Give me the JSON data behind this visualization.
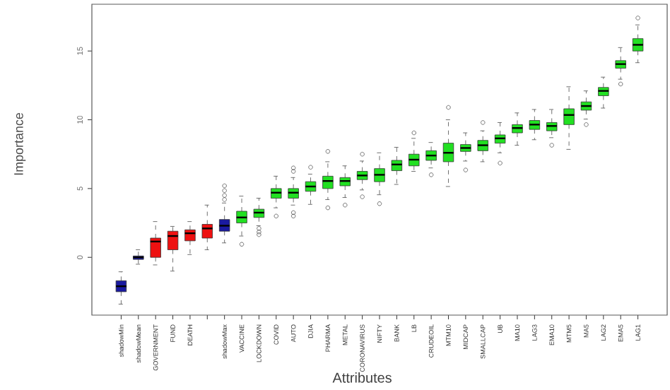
{
  "chart_data": {
    "type": "box",
    "xlabel": "Attributes",
    "ylabel": "Importance",
    "categories": [
      "shadowMin",
      "shadowMean",
      "GOVERNMENT",
      "FUND",
      "DEATH",
      null,
      "shadowMax",
      "VACCINE",
      "LOCKDOWN",
      "COVID",
      "AUTO",
      "DJIA",
      "PHARMA",
      "METAL",
      "CORONAVIRUS",
      "NIFTY",
      "BANK",
      "LB",
      "CRUDEOIL",
      "MTM10",
      "MIDCAP",
      "SMALLCAP",
      "UB",
      "MA10",
      "LAG3",
      "EMA10",
      "MTM5",
      "MA5",
      "LAG2",
      "EMA5",
      "LAG1"
    ],
    "colors": [
      "#1a1aa0",
      "#1a1aa0",
      "#ee1111",
      "#ee1111",
      "#ee1111",
      "#ee1111",
      "#1a1aa0",
      "#22e022",
      "#22e022",
      "#22e022",
      "#22e022",
      "#22e022",
      "#22e022",
      "#22e022",
      "#22e022",
      "#22e022",
      "#22e022",
      "#22e022",
      "#22e022",
      "#22e022",
      "#22e022",
      "#22e022",
      "#22e022",
      "#22e022",
      "#22e022",
      "#22e022",
      "#22e022",
      "#22e022",
      "#22e022",
      "#22e022",
      "#22e022"
    ],
    "boxes": [
      {
        "low": -3.4,
        "q1": -2.5,
        "median": -2.1,
        "q3": -1.7,
        "high": -1.05
      },
      {
        "low": -0.5,
        "q1": -0.15,
        "median": 0,
        "q3": 0.1,
        "high": 0.55
      },
      {
        "low": -0.55,
        "q1": 0,
        "median": 1.15,
        "q3": 1.4,
        "high": 2.6
      },
      {
        "low": -1.0,
        "q1": 0.55,
        "median": 1.55,
        "q3": 1.9,
        "high": 2.25
      },
      {
        "low": 0.2,
        "q1": 1.2,
        "median": 1.75,
        "q3": 2.0,
        "high": 2.6
      },
      {
        "low": 0.55,
        "q1": 1.4,
        "median": 2.1,
        "q3": 2.4,
        "high": 3.8
      },
      {
        "low": 1.05,
        "q1": 1.9,
        "median": 2.3,
        "q3": 2.75,
        "high": 3.95,
        "outliers": [
          4.2,
          4.5,
          4.85,
          5.2
        ]
      },
      {
        "low": 1.55,
        "q1": 2.5,
        "median": 2.9,
        "q3": 3.35,
        "high": 4.45,
        "outliers": [
          0.95
        ]
      },
      {
        "low": 2.3,
        "q1": 2.9,
        "median": 3.25,
        "q3": 3.5,
        "high": 4.3,
        "outliers": [
          2.1,
          1.85,
          1.65
        ]
      },
      {
        "low": 3.6,
        "q1": 4.3,
        "median": 4.7,
        "q3": 5.0,
        "high": 5.9,
        "outliers": [
          3.0
        ]
      },
      {
        "low": 3.8,
        "q1": 4.3,
        "median": 4.7,
        "q3": 5.0,
        "high": 5.8,
        "outliers": [
          6.25,
          6.5,
          3.25,
          3.0
        ]
      },
      {
        "low": 3.85,
        "q1": 4.8,
        "median": 5.15,
        "q3": 5.5,
        "high": 6.05,
        "outliers": [
          6.55
        ]
      },
      {
        "low": 4.2,
        "q1": 5.0,
        "median": 5.55,
        "q3": 5.9,
        "high": 6.95,
        "outliers": [
          7.7,
          3.6
        ]
      },
      {
        "low": 4.35,
        "q1": 5.2,
        "median": 5.55,
        "q3": 5.8,
        "high": 6.65,
        "outliers": [
          3.8
        ]
      },
      {
        "low": 4.9,
        "q1": 5.65,
        "median": 5.95,
        "q3": 6.25,
        "high": 7.0,
        "outliers": [
          7.5,
          4.4
        ]
      },
      {
        "low": 4.55,
        "q1": 5.5,
        "median": 6.0,
        "q3": 6.45,
        "high": 7.6,
        "outliers": [
          3.9
        ]
      },
      {
        "low": 5.3,
        "q1": 6.3,
        "median": 6.75,
        "q3": 7.05,
        "high": 8.0
      },
      {
        "low": 6.25,
        "q1": 6.65,
        "median": 7.1,
        "q3": 7.5,
        "high": 8.65,
        "outliers": [
          9.05
        ]
      },
      {
        "low": 6.5,
        "q1": 7.05,
        "median": 7.4,
        "q3": 7.75,
        "high": 8.35,
        "outliers": [
          6.0
        ]
      },
      {
        "low": 5.15,
        "q1": 6.95,
        "median": 7.6,
        "q3": 8.3,
        "high": 10.0,
        "outliers": [
          10.9
        ]
      },
      {
        "low": 7.0,
        "q1": 7.7,
        "median": 7.95,
        "q3": 8.2,
        "high": 9.05,
        "outliers": [
          6.35
        ]
      },
      {
        "low": 6.95,
        "q1": 7.75,
        "median": 8.15,
        "q3": 8.5,
        "high": 9.2,
        "outliers": [
          9.8
        ]
      },
      {
        "low": 7.6,
        "q1": 8.3,
        "median": 8.65,
        "q3": 8.9,
        "high": 9.8,
        "outliers": [
          6.85
        ]
      },
      {
        "low": 8.15,
        "q1": 9.05,
        "median": 9.4,
        "q3": 9.65,
        "high": 10.5
      },
      {
        "low": 8.55,
        "q1": 9.3,
        "median": 9.65,
        "q3": 9.95,
        "high": 10.75
      },
      {
        "low": 8.7,
        "q1": 9.2,
        "median": 9.55,
        "q3": 9.8,
        "high": 10.75,
        "outliers": [
          8.15
        ]
      },
      {
        "low": 7.85,
        "q1": 9.65,
        "median": 10.35,
        "q3": 10.8,
        "high": 12.4
      },
      {
        "low": 10.05,
        "q1": 10.7,
        "median": 11.0,
        "q3": 11.3,
        "high": 12.1,
        "outliers": [
          9.65
        ]
      },
      {
        "low": 10.85,
        "q1": 11.75,
        "median": 12.1,
        "q3": 12.35,
        "high": 13.1
      },
      {
        "low": 12.95,
        "q1": 13.75,
        "median": 14.05,
        "q3": 14.3,
        "high": 15.25,
        "outliers": [
          12.6
        ]
      },
      {
        "low": 14.15,
        "q1": 15.0,
        "median": 15.45,
        "q3": 15.9,
        "high": 16.9,
        "outliers": [
          17.4
        ]
      }
    ],
    "ylim": [
      -4.2,
      18.4
    ],
    "yticks": [
      0,
      5,
      10,
      15
    ]
  }
}
